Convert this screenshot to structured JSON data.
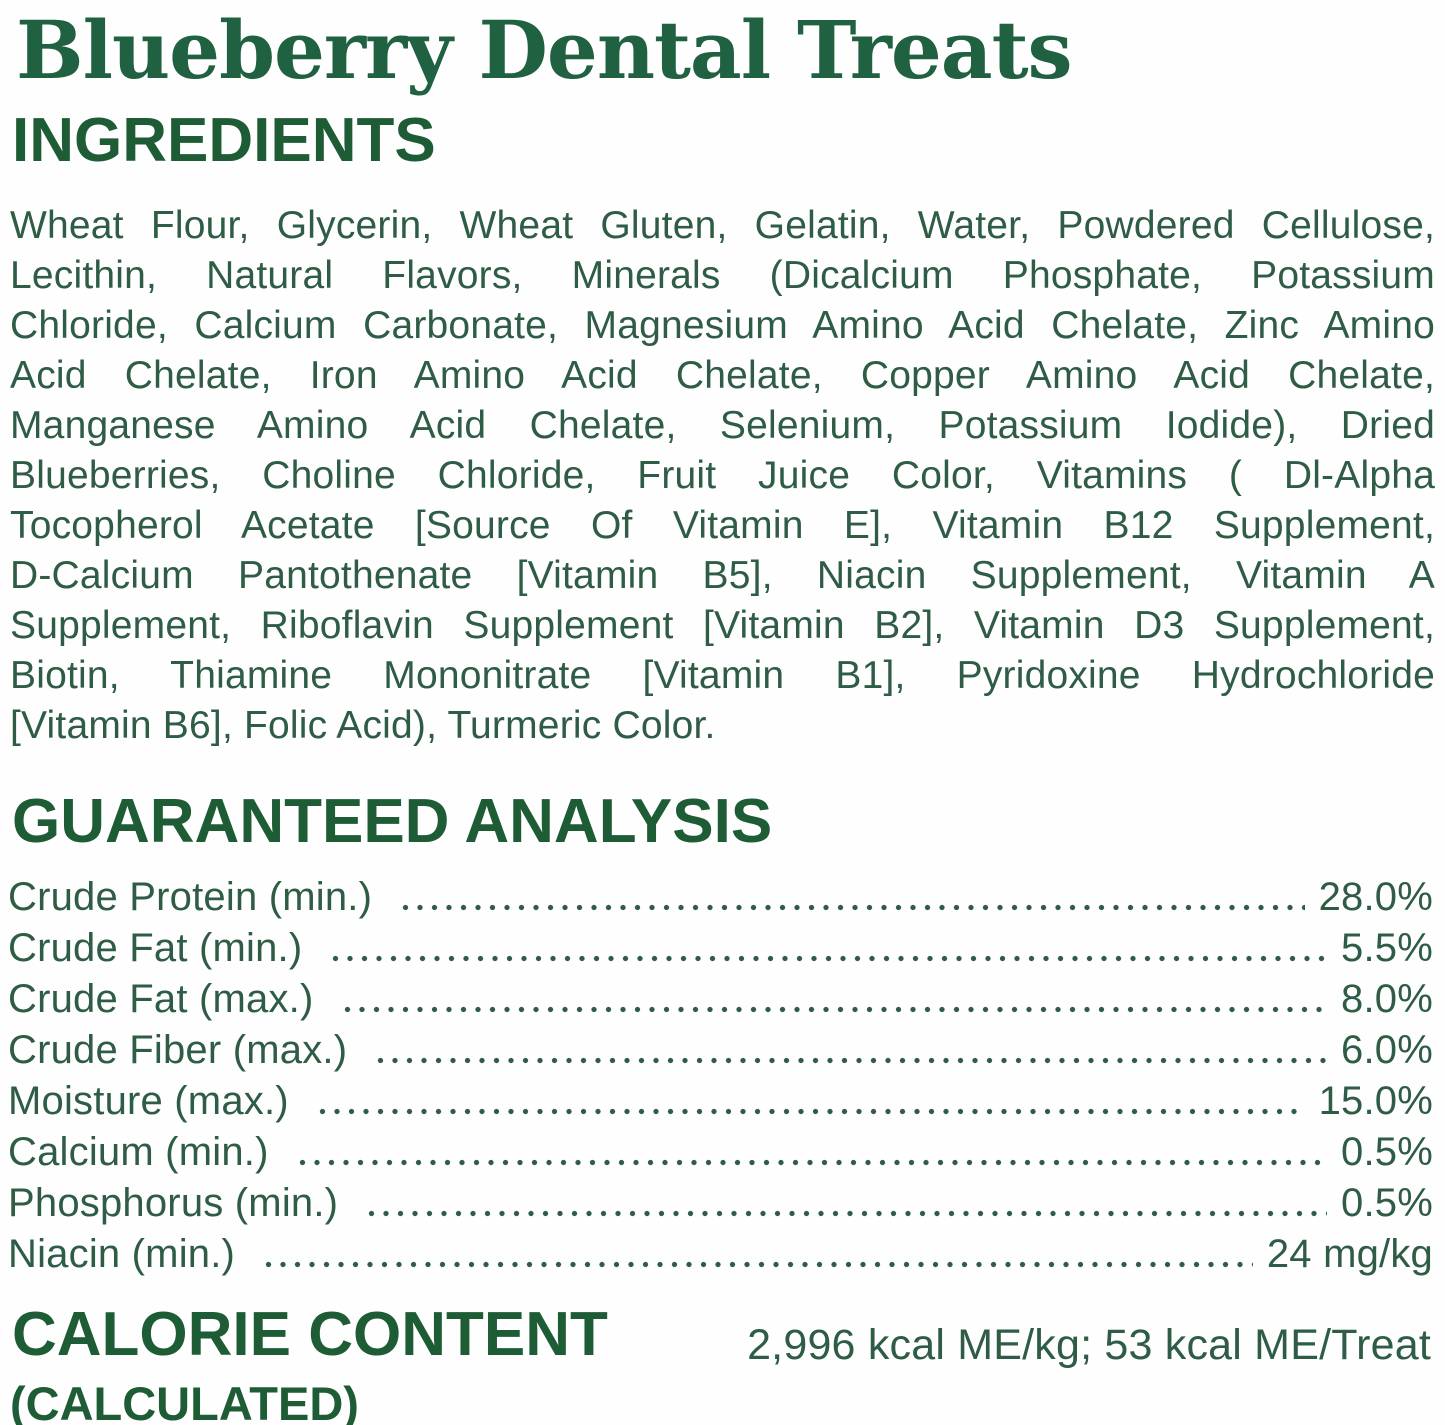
{
  "title": "Blueberry Dental Treats",
  "ingredients": {
    "heading": "INGREDIENTS",
    "lines": [
      "Wheat Flour, Glycerin, Wheat Gluten, Gelatin, Water, Powdered Cellulose,",
      "Lecithin, Natural Flavors, Minerals (Dicalcium Phosphate, Potassium",
      "Chloride, Calcium Carbonate, Magnesium Amino Acid Chelate, Zinc Amino",
      "Acid Chelate, Iron Amino Acid Chelate, Copper Amino Acid Chelate,",
      "Manganese Amino Acid Chelate, Selenium, Potassium Iodide), Dried",
      "Blueberries, Choline Chloride, Fruit Juice Color, Vitamins ( Dl-Alpha",
      "Tocopherol Acetate [Source Of Vitamin E], Vitamin B12 Supplement,",
      "D-Calcium Pantothenate [Vitamin B5], Niacin Supplement, Vitamin A",
      "Supplement, Riboflavin Supplement [Vitamin B2], Vitamin D3 Supplement,",
      "Biotin, Thiamine Mononitrate [Vitamin B1], Pyridoxine Hydrochloride",
      "[Vitamin B6], Folic Acid), Turmeric Color."
    ]
  },
  "guaranteed_analysis": {
    "heading": "GUARANTEED ANALYSIS",
    "rows": [
      {
        "label": "Crude Protein (min.)",
        "value": "28.0%"
      },
      {
        "label": "Crude Fat (min.)",
        "value": "5.5%"
      },
      {
        "label": "Crude Fat (max.)",
        "value": "8.0%"
      },
      {
        "label": "Crude Fiber (max.)",
        "value": "6.0%"
      },
      {
        "label": "Moisture (max.)",
        "value": "15.0%"
      },
      {
        "label": "Calcium (min.)",
        "value": "0.5%"
      },
      {
        "label": "Phosphorus (min.)",
        "value": "0.5%"
      },
      {
        "label": "Niacin (min.)",
        "value": "24 mg/kg"
      }
    ]
  },
  "calorie_content": {
    "heading": "CALORIE CONTENT",
    "subheading": "(CALCULATED)",
    "value": "2,996 kcal ME/kg; 53 kcal ME/Treat"
  },
  "colors": {
    "title_green": "#1f6140",
    "heading_green": "#1d5c34",
    "body_green": "#2e5c45",
    "background": "#fefefe"
  }
}
